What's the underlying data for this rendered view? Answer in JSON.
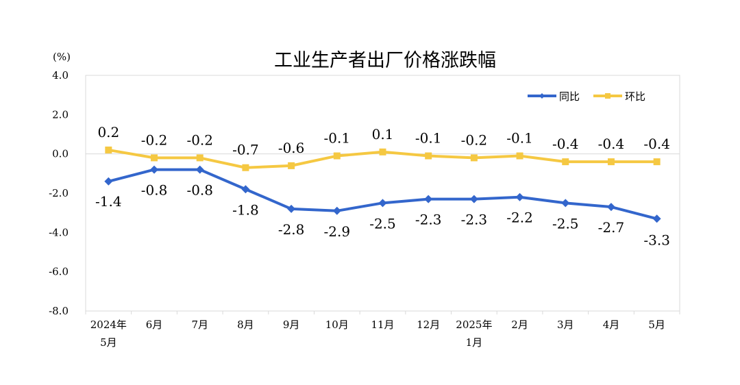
{
  "chart_data": {
    "type": "line",
    "title": "工业生产者出厂价格涨跌幅",
    "ylabel": "(%)",
    "xlabel": "",
    "ylim": [
      -8.0,
      4.0
    ],
    "yticks": [
      "4.0",
      "2.0",
      "0.0",
      "-2.0",
      "-4.0",
      "-6.0",
      "-8.0"
    ],
    "ytick_values": [
      4.0,
      2.0,
      0.0,
      -2.0,
      -4.0,
      -6.0,
      -8.0
    ],
    "categories": [
      [
        "2024年",
        "5月"
      ],
      [
        "6月"
      ],
      [
        "7月"
      ],
      [
        "8月"
      ],
      [
        "9月"
      ],
      [
        "10月"
      ],
      [
        "11月"
      ],
      [
        "12月"
      ],
      [
        "2025年",
        "1月"
      ],
      [
        "2月"
      ],
      [
        "3月"
      ],
      [
        "4月"
      ],
      [
        "5月"
      ]
    ],
    "grid": false,
    "legend_position": "top-right",
    "series": [
      {
        "name": "同比",
        "color": "#3366cc",
        "marker": "diamond",
        "values": [
          -1.4,
          -0.8,
          -0.8,
          -1.8,
          -2.8,
          -2.9,
          -2.5,
          -2.3,
          -2.3,
          -2.2,
          -2.5,
          -2.7,
          -3.3
        ],
        "labels": [
          "-1.4",
          "-0.8",
          "-0.8",
          "-1.8",
          "-2.8",
          "-2.9",
          "-2.5",
          "-2.3",
          "-2.3",
          "-2.2",
          "-2.5",
          "-2.7",
          "-3.3"
        ]
      },
      {
        "name": "环比",
        "color": "#f5c842",
        "marker": "square",
        "values": [
          0.2,
          -0.2,
          -0.2,
          -0.7,
          -0.6,
          -0.1,
          0.1,
          -0.1,
          -0.2,
          -0.1,
          -0.4,
          -0.4,
          -0.4
        ],
        "labels": [
          "0.2",
          "-0.2",
          "-0.2",
          "-0.7",
          "-0.6",
          "-0.1",
          "0.1",
          "-0.1",
          "-0.2",
          "-0.1",
          "-0.4",
          "-0.4",
          "-0.4"
        ]
      }
    ]
  }
}
